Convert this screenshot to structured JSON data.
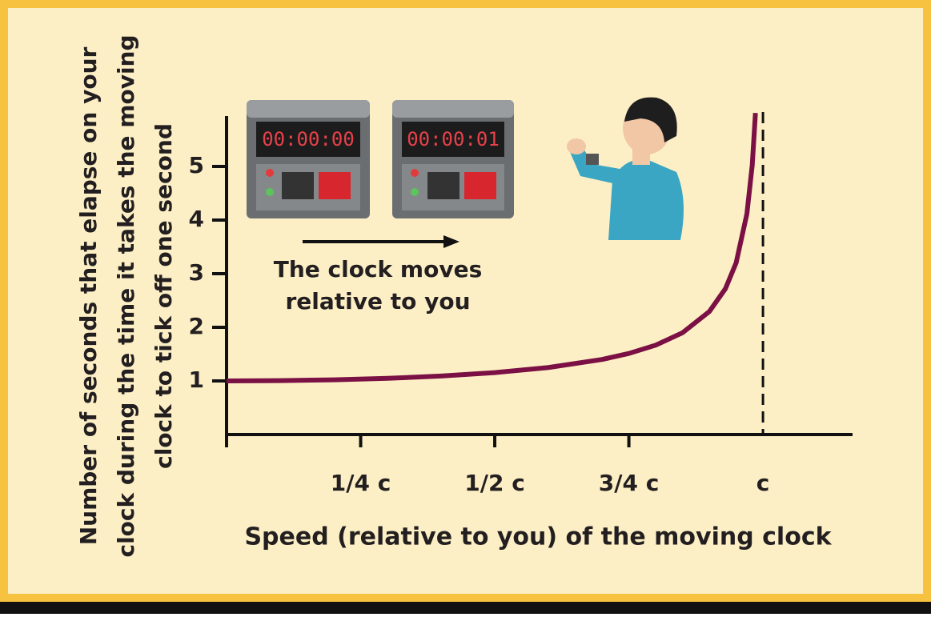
{
  "chart_data": {
    "type": "line",
    "y_label": [
      "Number of seconds that elapse on your",
      "clock during the time it takes the moving",
      "clock to tick off one second"
    ],
    "x_label": "Speed (relative to you) of the moving clock",
    "annotations": [
      "The clock moves",
      "relative to you"
    ],
    "clock_displays": [
      "00:00:00",
      "00:00:01"
    ],
    "x": [
      0,
      0.1,
      0.2,
      0.3,
      0.4,
      0.5,
      0.6,
      0.7,
      0.75,
      0.8,
      0.85,
      0.9,
      0.93,
      0.95,
      0.97,
      0.98,
      0.986
    ],
    "series": [
      {
        "color": "#7b1045",
        "values": [
          1,
          1.005,
          1.021,
          1.048,
          1.091,
          1.155,
          1.25,
          1.4,
          1.512,
          1.667,
          1.898,
          2.294,
          2.72,
          3.203,
          4.113,
          5.025,
          5.997
        ]
      }
    ],
    "xlim": [
      0,
      1.167
    ],
    "ylim": [
      0,
      5.94
    ],
    "xticks": [
      {
        "value": 0.25,
        "label": "1/4 c"
      },
      {
        "value": 0.5,
        "label": "1/2 c"
      },
      {
        "value": 0.75,
        "label": "3/4 c"
      },
      {
        "value": 1,
        "label": "c"
      }
    ],
    "yticks": [
      1,
      2,
      3,
      4,
      5
    ],
    "asymptote_dashed": true
  }
}
